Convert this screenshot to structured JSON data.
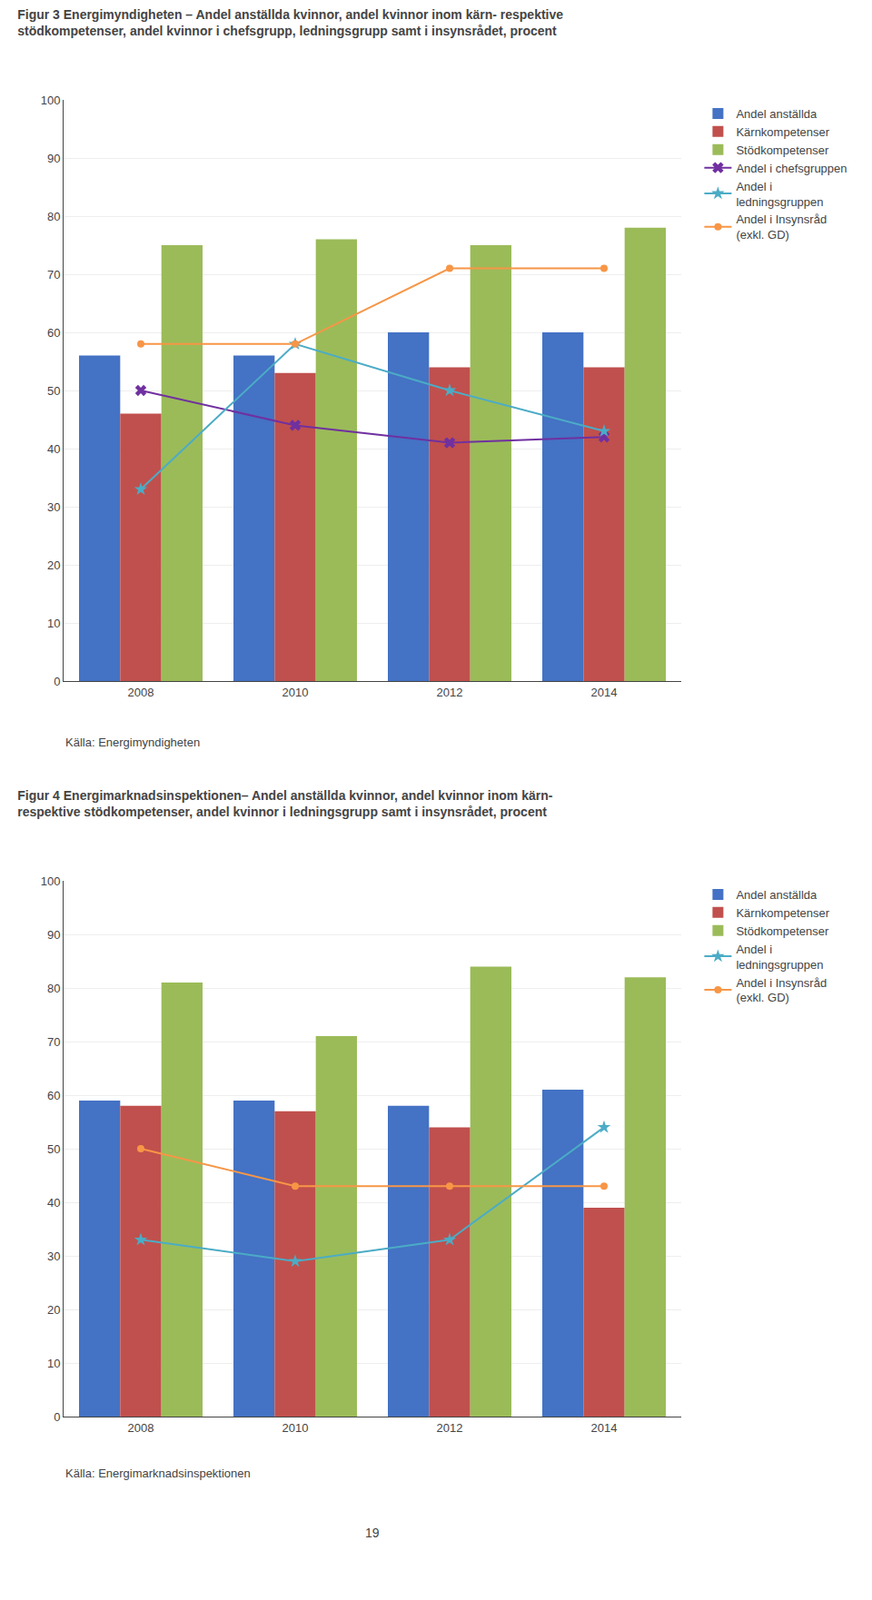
{
  "chart_data": [
    {
      "type": "bar",
      "title": "Figur 3 Energimyndigheten – Andel anställda kvinnor, andel kvinnor inom kärn- respektive\nstödkompetenser, andel kvinnor i chefsgrupp, ledningsgrupp samt i insynsrådet, procent",
      "categories": [
        "2008",
        "2010",
        "2012",
        "2014"
      ],
      "series": [
        {
          "name": "Andel anställda",
          "type": "bar",
          "color": "#4472C4",
          "values": [
            56,
            56,
            60,
            60
          ]
        },
        {
          "name": "Kärnkompetenser",
          "type": "bar",
          "color": "#C0504D",
          "values": [
            46,
            53,
            54,
            54
          ]
        },
        {
          "name": "Stödkompetenser",
          "type": "bar",
          "color": "#9BBB59",
          "values": [
            75,
            76,
            75,
            78
          ]
        },
        {
          "name": "Andel i chefsgruppen",
          "type": "line",
          "marker": "x",
          "color": "#7030A0",
          "values": [
            50,
            44,
            41,
            42
          ]
        },
        {
          "name": "Andel i\nledningsgruppen",
          "type": "line",
          "marker": "star",
          "color": "#4BACC6",
          "values": [
            33,
            58,
            50,
            43
          ]
        },
        {
          "name": "Andel i Insynsråd\n(exkl. GD)",
          "type": "line",
          "marker": "circle",
          "color": "#F79646",
          "values": [
            58,
            58,
            71,
            71
          ]
        }
      ],
      "ylim": [
        0,
        100
      ],
      "yticks": [
        0,
        10,
        20,
        30,
        40,
        50,
        60,
        70,
        80,
        90,
        100
      ],
      "grid": true,
      "legend": "right",
      "annotations": [
        "Källa: Energimyndigheten"
      ]
    },
    {
      "type": "bar",
      "title": "Figur 4 Energimarknadsinspektionen– Andel anställda kvinnor, andel kvinnor inom kärn-\nrespektive stödkompetenser, andel kvinnor i ledningsgrupp samt i insynsrådet, procent",
      "categories": [
        "2008",
        "2010",
        "2012",
        "2014"
      ],
      "series": [
        {
          "name": "Andel anställda",
          "type": "bar",
          "color": "#4472C4",
          "values": [
            59,
            59,
            58,
            61
          ]
        },
        {
          "name": "Kärnkompetenser",
          "type": "bar",
          "color": "#C0504D",
          "values": [
            58,
            57,
            54,
            39
          ]
        },
        {
          "name": "Stödkompetenser",
          "type": "bar",
          "color": "#9BBB59",
          "values": [
            81,
            71,
            84,
            82
          ]
        },
        {
          "name": "Andel i\nledningsgruppen",
          "type": "line",
          "marker": "star",
          "color": "#4BACC6",
          "values": [
            33,
            29,
            33,
            54
          ]
        },
        {
          "name": "Andel i Insynsråd\n(exkl. GD)",
          "type": "line",
          "marker": "circle",
          "color": "#F79646",
          "values": [
            50,
            43,
            43,
            43
          ]
        }
      ],
      "ylim": [
        0,
        100
      ],
      "yticks": [
        0,
        10,
        20,
        30,
        40,
        50,
        60,
        70,
        80,
        90,
        100
      ],
      "grid": true,
      "legend": "right",
      "annotations": [
        "Källa: Energimarknadsinspektionen",
        "19"
      ]
    }
  ]
}
